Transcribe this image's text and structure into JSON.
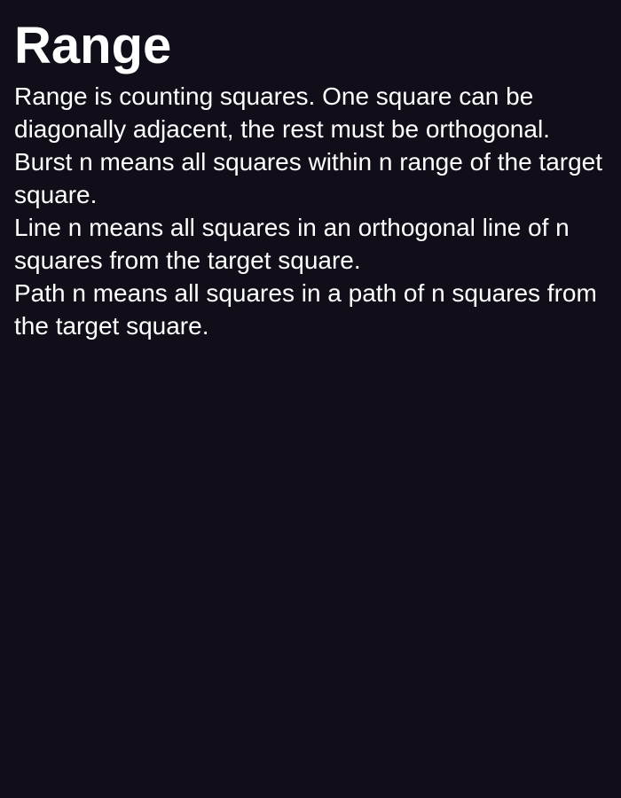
{
  "page": {
    "title": "Range",
    "paragraphs": [
      "Range is counting squares. One square can be diagonally adjacent, the rest must be orthogonal.",
      "Burst n means all squares within n range of the target square.",
      "Line n means all squares in an orthogonal line of n squares from the target square.",
      "Path n means all squares in a path of n squares from the target square."
    ]
  },
  "colors": {
    "background": "#110e19",
    "text": "#ffffff"
  }
}
